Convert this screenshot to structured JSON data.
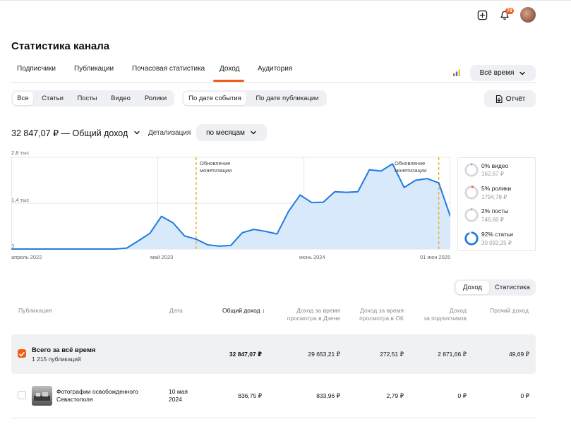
{
  "header": {
    "notification_count": "79"
  },
  "page": {
    "title": "Статистика канала"
  },
  "tabs": [
    {
      "label": "Подписчики"
    },
    {
      "label": "Публикации"
    },
    {
      "label": "Почасовая статистика"
    },
    {
      "label": "Доход"
    },
    {
      "label": "Аудитория"
    }
  ],
  "period": {
    "label": "Всё время"
  },
  "filters": {
    "type": [
      "Все",
      "Статьи",
      "Посты",
      "Видео",
      "Ролики"
    ],
    "date_mode": [
      "По дате события",
      "По дате публикации"
    ]
  },
  "report_button": "Отчёт",
  "summary": {
    "total": "32 847,07 ₽ — Общий доход",
    "detail_label": "Детализация",
    "detail_value": "по месяцам"
  },
  "chart_data": {
    "type": "area",
    "ytick_labels": [
      "2,8 тыс",
      "1,4 тыс",
      "0"
    ],
    "yticks": [
      2800,
      1400,
      0
    ],
    "ylim": [
      0,
      2800
    ],
    "xtick_labels": [
      "апрель 2022",
      "май 2023",
      "июнь 2024",
      "01 июн 2025"
    ],
    "values": [
      0,
      0,
      0,
      0,
      0,
      0,
      0,
      0,
      0,
      0,
      30,
      250,
      480,
      1000,
      800,
      400,
      300,
      130,
      90,
      110,
      500,
      600,
      540,
      460,
      1150,
      1650,
      1420,
      1430,
      1750,
      1730,
      1750,
      2420,
      2380,
      2600,
      1880,
      2100,
      2150,
      2020,
      1000
    ],
    "annotations": [
      {
        "text": "Обновление монетизации",
        "index": 16
      },
      {
        "text": "Обновление монетизации",
        "index": 37
      }
    ],
    "colors": {
      "line": "#1f7ae0",
      "fill": "#d8e9fb",
      "annotation": "#f5a623"
    },
    "grid": true
  },
  "legend": [
    {
      "title": "0% видео",
      "value": "162,67 ₽",
      "percent": 0,
      "color": "#1f7ae0"
    },
    {
      "title": "5% ролики",
      "value": "1794,78 ₽",
      "percent": 5,
      "color": "#f25c19"
    },
    {
      "title": "2% посты",
      "value": "746,66 ₽",
      "percent": 2,
      "color": "#f25c19"
    },
    {
      "title": "92% статьи",
      "value": "30 093,25 ₽",
      "percent": 92,
      "color": "#1f7ae0"
    }
  ],
  "table_toggle": [
    "Доход",
    "Статистика"
  ],
  "table": {
    "headers": {
      "publication": "Публикация",
      "date": "Дата",
      "total": "Общий доход ↓",
      "dzen_1": "Доход за время",
      "dzen_2": "просмотра в Дзене",
      "ok_1": "Доход за время",
      "ok_2": "просмотра в ОК",
      "subs_1": "Доход",
      "subs_2": "за подписчиков",
      "other": "Прочий доход"
    },
    "total_row": {
      "title": "Всего за всё время",
      "count": "1 215 публикаций",
      "total": "32 847,07 ₽",
      "dzen": "29 653,21 ₽",
      "ok": "272,51 ₽",
      "subs": "2 871,66 ₽",
      "other": "49,69 ₽"
    },
    "rows": [
      {
        "title_1": "Фотографии освобожденного",
        "title_2": "Севастополя",
        "date_1": "10 мая",
        "date_2": "2024",
        "total": "836,75 ₽",
        "dzen": "833,96 ₽",
        "ok": "2,79 ₽",
        "subs": "0 ₽",
        "other": "0 ₽"
      }
    ]
  }
}
